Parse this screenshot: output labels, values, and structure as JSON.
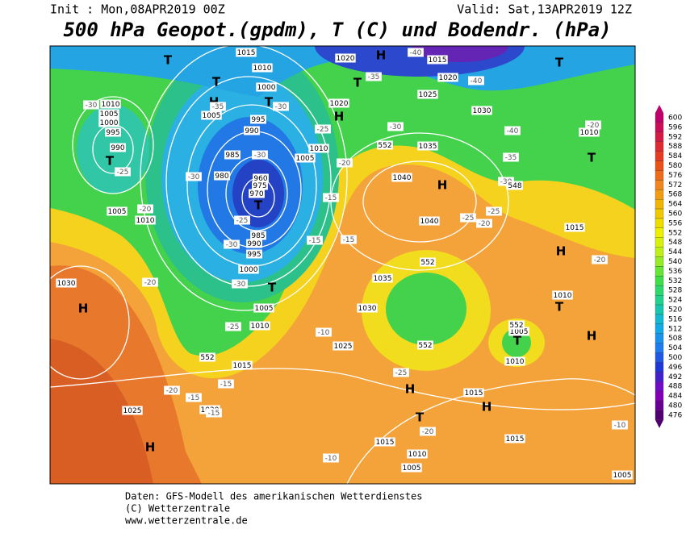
{
  "header": {
    "init": "Init : Mon,08APR2019 00Z",
    "valid": "Valid: Sat,13APR2019 12Z",
    "title": "500 hPa Geopot.(gpdm), T (C) und Bodendr. (hPa)"
  },
  "scale": {
    "labels": [
      600,
      596,
      592,
      588,
      584,
      580,
      576,
      572,
      568,
      564,
      560,
      556,
      552,
      548,
      544,
      540,
      536,
      532,
      528,
      524,
      520,
      516,
      512,
      508,
      504,
      500,
      496,
      492,
      488,
      484,
      480,
      476
    ]
  },
  "map": {
    "labels": [
      "1015",
      "1010",
      "1000",
      "995",
      "990",
      "985",
      "980",
      "975",
      "970",
      "960",
      "T",
      "985",
      "990",
      "995",
      "1000",
      "1005",
      "1010",
      "T",
      "1020",
      "H",
      "1015",
      "1020",
      "1025",
      "1030",
      "1035",
      "1040",
      "1040",
      "H",
      "T",
      "T",
      "1010",
      "1015",
      "H",
      "1010",
      "T",
      "H",
      "1035",
      "1030",
      "1025",
      "1015",
      "1020",
      "1025",
      "H",
      "H",
      "1030",
      "1010",
      "1005",
      "1000",
      "995",
      "990",
      "T",
      "1005",
      "1010",
      "T",
      "T",
      "T",
      "T",
      "H",
      "1020",
      "1010",
      "1005",
      "H",
      "T",
      "H",
      "1015",
      "1015",
      "1015",
      "1010",
      "1005",
      "1005",
      "1010",
      "1005",
      "T",
      "H",
      "1005",
      "-30",
      "-35",
      "-30",
      "-30",
      "-30",
      "-25",
      "-30",
      "-30",
      "-25",
      "-20",
      "-20",
      "-25",
      "-25",
      "-20",
      "-15",
      "-15",
      "-15",
      "-10",
      "-35",
      "-30",
      "-40",
      "-40",
      "-40",
      "-35",
      "-30",
      "-25",
      "-25",
      "-20",
      "-20",
      "-20",
      "-25",
      "-20",
      "-15",
      "-15",
      "-20",
      "-15",
      "-10",
      "-10",
      "552",
      "552",
      "552",
      "552",
      "552",
      "548"
    ]
  },
  "footer": {
    "source": "Daten: GFS-Modell des amerikanischen Wetterdienstes",
    "copyright": "(C) Wetterzentrale",
    "url": "www.wetterzentrale.de"
  }
}
